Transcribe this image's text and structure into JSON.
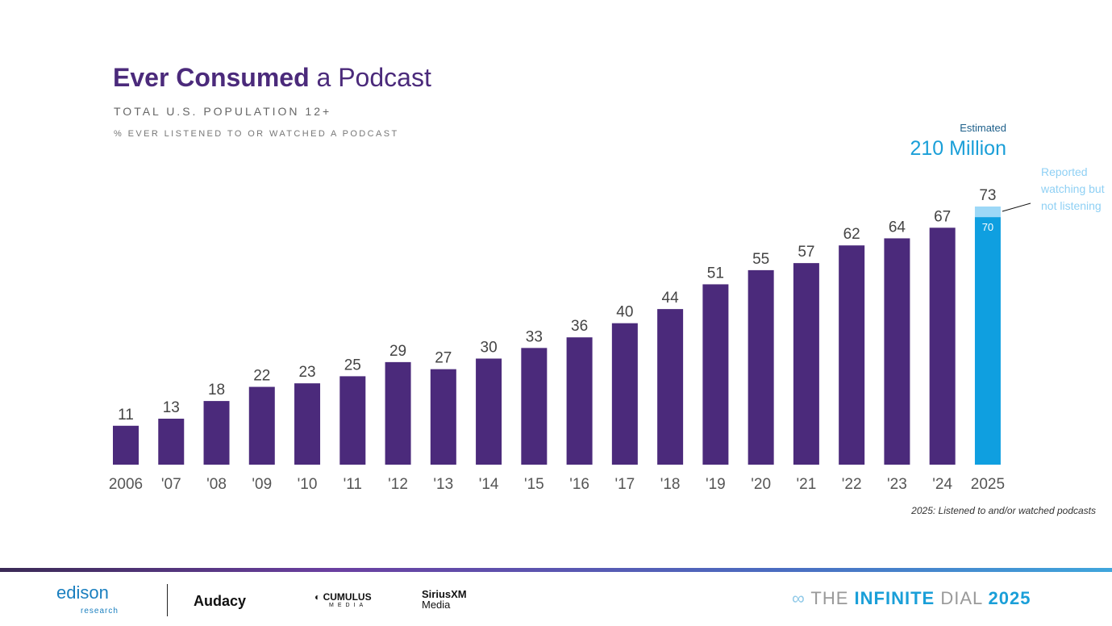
{
  "title": {
    "bold": "Ever Consumed",
    "rest": " a Podcast"
  },
  "subtitle": "TOTAL U.S. POPULATION 12+",
  "subsubtitle": "% EVER LISTENED TO OR WATCHED A PODCAST",
  "estimate": {
    "label": "Estimated",
    "value": "210 Million"
  },
  "annotation": "Reported watching but not listening",
  "footnote": "2025: Listened to and/or watched podcasts",
  "colors": {
    "bar": "#4b2a7b",
    "bar_2025": "#0f9fe0",
    "bar_2025_watch": "#9dd8f7"
  },
  "chart_data": {
    "type": "bar",
    "categories": [
      "2006",
      "'07",
      "'08",
      "'09",
      "'10",
      "'11",
      "'12",
      "'13",
      "'14",
      "'15",
      "'16",
      "'17",
      "'18",
      "'19",
      "'20",
      "'21",
      "'22",
      "'23",
      "'24",
      "2025"
    ],
    "values": [
      11,
      13,
      18,
      22,
      23,
      25,
      29,
      27,
      30,
      33,
      36,
      40,
      44,
      51,
      55,
      57,
      62,
      64,
      67,
      73
    ],
    "stacked_2025": {
      "listened": 70,
      "watching_not_listening_total": 73
    },
    "ylim": [
      0,
      73
    ],
    "grid": false
  },
  "footer": {
    "logos": [
      "edison",
      "research",
      "Audacy",
      "CUMULUS",
      "MEDIA",
      "SiriusXM",
      "Media"
    ],
    "dial": {
      "pre": "THE ",
      "mid": "INFINITE",
      "post": " DIAL",
      "year": "2025"
    }
  }
}
